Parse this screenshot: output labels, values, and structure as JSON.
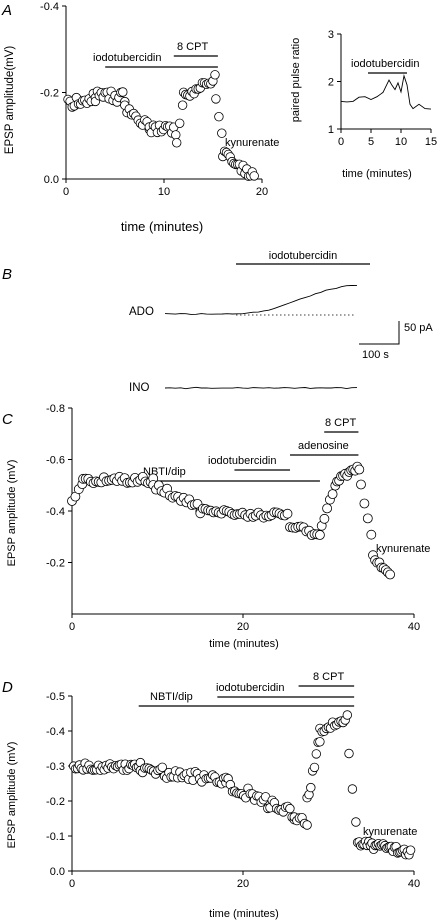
{
  "panels": [
    {
      "id": "A",
      "label": "A"
    },
    {
      "id": "B",
      "label": "B"
    },
    {
      "id": "C",
      "label": "C"
    },
    {
      "id": "D",
      "label": "D"
    }
  ],
  "chart_data": [
    {
      "panel": "A",
      "type": "scatter",
      "xlabel": "time (minutes)",
      "ylabel": "EPSP amplitude(mV)",
      "xlim": [
        0,
        20
      ],
      "ylim": [
        0.0,
        -0.4
      ],
      "xticks": [
        "0",
        "10",
        "20"
      ],
      "yticks": [
        "0.0",
        "-0.2",
        "-0.4"
      ],
      "grid": false,
      "segments": [
        {
          "x0": 0.2,
          "x1": 3.0,
          "y0": -0.172,
          "y1": -0.19,
          "n": 14,
          "noise": 0.012
        },
        {
          "x0": 3.0,
          "x1": 6.0,
          "y0": -0.19,
          "y1": -0.19,
          "n": 16,
          "noise": 0.013
        },
        {
          "x0": 6.0,
          "x1": 8.5,
          "y0": -0.17,
          "y1": -0.12,
          "n": 12,
          "noise": 0.013
        },
        {
          "x0": 8.5,
          "x1": 11.2,
          "y0": -0.115,
          "y1": -0.11,
          "n": 14,
          "noise": 0.012
        },
        {
          "x0": 11.3,
          "x1": 11.9,
          "y0": -0.08,
          "y1": -0.17,
          "n": 3,
          "noise": 0.008
        },
        {
          "x0": 12.0,
          "x1": 15.2,
          "y0": -0.19,
          "y1": -0.23,
          "n": 16,
          "noise": 0.011
        },
        {
          "x0": 15.3,
          "x1": 15.9,
          "y0": -0.19,
          "y1": -0.11,
          "n": 3,
          "noise": 0.006
        },
        {
          "x0": 16.0,
          "x1": 19.2,
          "y0": -0.06,
          "y1": -0.005,
          "n": 18,
          "noise": 0.009
        }
      ],
      "bars": [
        {
          "label": "iodotubercidin",
          "x0": 4,
          "x1": 15.5
        },
        {
          "label": "8 CPT",
          "x0": 11,
          "x1": 15.5
        }
      ],
      "annotations": [
        {
          "label": "kynurenate"
        }
      ]
    },
    {
      "panel": "A-inset",
      "type": "line",
      "xlabel": "time (minutes)",
      "ylabel": "paired pulse ratio",
      "xlim": [
        0,
        15
      ],
      "ylim": [
        1,
        3
      ],
      "xticks": [
        "0",
        "5",
        "10",
        "15"
      ],
      "yticks": [
        "1",
        "2",
        "3"
      ],
      "x": [
        0,
        1,
        2,
        3,
        4,
        5,
        6,
        7,
        8,
        8.5,
        9,
        9.5,
        10,
        10.5,
        11,
        11.5,
        12,
        13,
        14,
        15
      ],
      "y": [
        1.6,
        1.55,
        1.6,
        1.65,
        1.7,
        1.6,
        1.7,
        1.75,
        2.05,
        1.9,
        1.85,
        1.95,
        1.8,
        2.1,
        1.95,
        1.5,
        1.45,
        1.5,
        1.45,
        1.4
      ],
      "bars": [
        {
          "label": "iodotubercidin",
          "x0": 4.5,
          "x1": 11
        }
      ]
    },
    {
      "panel": "B",
      "type": "line",
      "traces": [
        {
          "name": "ADO",
          "dy": [
            0,
            0,
            0,
            0,
            0,
            0,
            0,
            0,
            0,
            0,
            0,
            0,
            0,
            0,
            0,
            -0.5,
            -1,
            -1.5,
            -2,
            -3,
            -4,
            -5.5,
            -7,
            -9,
            -11,
            -13,
            -14.5,
            -16,
            -18,
            -20,
            -22,
            -23.5,
            -24.5,
            -25.5,
            -27,
            -28,
            -28.5,
            -28.5
          ]
        },
        {
          "name": "INO",
          "dy": [
            0,
            -0.3,
            0.2,
            -0.2,
            0.3,
            0,
            -0.3,
            0.2,
            -0.1,
            0.3,
            0,
            -0.3,
            0.2,
            0,
            -0.2,
            0.3,
            0,
            -0.3,
            0.1,
            0.2,
            -0.2,
            0,
            0.3,
            -0.1,
            -0.3,
            0.2,
            0,
            -0.2,
            0.3,
            0,
            -0.2,
            0.1,
            0.2,
            -0.3,
            0,
            0.2,
            -0.1,
            0
          ]
        }
      ],
      "bars": [
        {
          "label": "iodotubercidin"
        }
      ],
      "scalebar": {
        "y_label": "50 pA",
        "x_label": "100 s"
      }
    },
    {
      "panel": "C",
      "type": "scatter",
      "xlabel": "time (minutes)",
      "ylabel": "EPSP amplitude (mV)",
      "xlim": [
        0,
        40
      ],
      "ylim": [
        0.0,
        -0.8
      ],
      "xticks": [
        "0",
        "20",
        "40"
      ],
      "yticks": [
        "-0.2",
        "-0.4",
        "-0.6",
        "-0.8"
      ],
      "segments": [
        {
          "x0": 0.0,
          "x1": 1.2,
          "y0": -0.44,
          "y1": -0.5,
          "n": 4,
          "noise": 0.008
        },
        {
          "x0": 1.3,
          "x1": 9.5,
          "y0": -0.52,
          "y1": -0.52,
          "n": 28,
          "noise": 0.013
        },
        {
          "x0": 9.5,
          "x1": 15.0,
          "y0": -0.5,
          "y1": -0.41,
          "n": 18,
          "noise": 0.014
        },
        {
          "x0": 15.0,
          "x1": 25.2,
          "y0": -0.4,
          "y1": -0.38,
          "n": 34,
          "noise": 0.012
        },
        {
          "x0": 25.5,
          "x1": 29.0,
          "y0": -0.34,
          "y1": -0.31,
          "n": 12,
          "noise": 0.012
        },
        {
          "x0": 29.2,
          "x1": 30.8,
          "y0": -0.34,
          "y1": -0.5,
          "n": 6,
          "noise": 0.01
        },
        {
          "x0": 31.0,
          "x1": 33.6,
          "y0": -0.52,
          "y1": -0.57,
          "n": 12,
          "noise": 0.01
        },
        {
          "x0": 33.8,
          "x1": 35.0,
          "y0": -0.5,
          "y1": -0.3,
          "n": 4,
          "noise": 0.008
        },
        {
          "x0": 35.2,
          "x1": 37.2,
          "y0": -0.22,
          "y1": -0.16,
          "n": 9,
          "noise": 0.01
        }
      ],
      "bars": [
        {
          "label": "NBTI/dip",
          "x0": 8.5,
          "x1": 29
        },
        {
          "label": "iodotubercidin",
          "x0": 19,
          "x1": 25.5
        },
        {
          "label": "adenosine",
          "x0": 25.5,
          "x1": 33.5
        },
        {
          "label": "8 CPT",
          "x0": 29.5,
          "x1": 33.5
        }
      ],
      "annotations": [
        {
          "label": "kynurenate"
        }
      ]
    },
    {
      "panel": "D",
      "type": "scatter",
      "xlabel": "time (minutes)",
      "ylabel": "EPSP amplitude (mV)",
      "xlim": [
        0,
        40
      ],
      "ylim": [
        0.0,
        -0.5
      ],
      "xticks": [
        "0",
        "20",
        "40"
      ],
      "yticks": [
        "0.0",
        "-0.1",
        "-0.2",
        "-0.3",
        "-0.4",
        "-0.5"
      ],
      "segments": [
        {
          "x0": 0.2,
          "x1": 8.0,
          "y0": -0.3,
          "y1": -0.3,
          "n": 36,
          "noise": 0.012
        },
        {
          "x0": 8.0,
          "x1": 18.0,
          "y0": -0.29,
          "y1": -0.26,
          "n": 40,
          "noise": 0.016
        },
        {
          "x0": 18.0,
          "x1": 26.0,
          "y0": -0.25,
          "y1": -0.16,
          "n": 32,
          "noise": 0.018
        },
        {
          "x0": 26.0,
          "x1": 27.5,
          "y0": -0.15,
          "y1": -0.14,
          "n": 6,
          "noise": 0.012
        },
        {
          "x0": 27.5,
          "x1": 29.0,
          "y0": -0.2,
          "y1": -0.38,
          "n": 8,
          "noise": 0.015
        },
        {
          "x0": 29.0,
          "x1": 32.2,
          "y0": -0.4,
          "y1": -0.44,
          "n": 14,
          "noise": 0.01
        },
        {
          "x0": 32.4,
          "x1": 33.2,
          "y0": -0.33,
          "y1": -0.14,
          "n": 3,
          "noise": 0.006
        },
        {
          "x0": 33.4,
          "x1": 39.6,
          "y0": -0.08,
          "y1": -0.055,
          "n": 34,
          "noise": 0.011
        }
      ],
      "bars": [
        {
          "label": "NBTI/dip",
          "x0": 7.8,
          "x1": 33
        },
        {
          "label": "iodotubercidin",
          "x0": 17,
          "x1": 33
        },
        {
          "label": "8 CPT",
          "x0": 26.5,
          "x1": 33
        }
      ],
      "annotations": [
        {
          "label": "kynurenate"
        }
      ]
    }
  ]
}
